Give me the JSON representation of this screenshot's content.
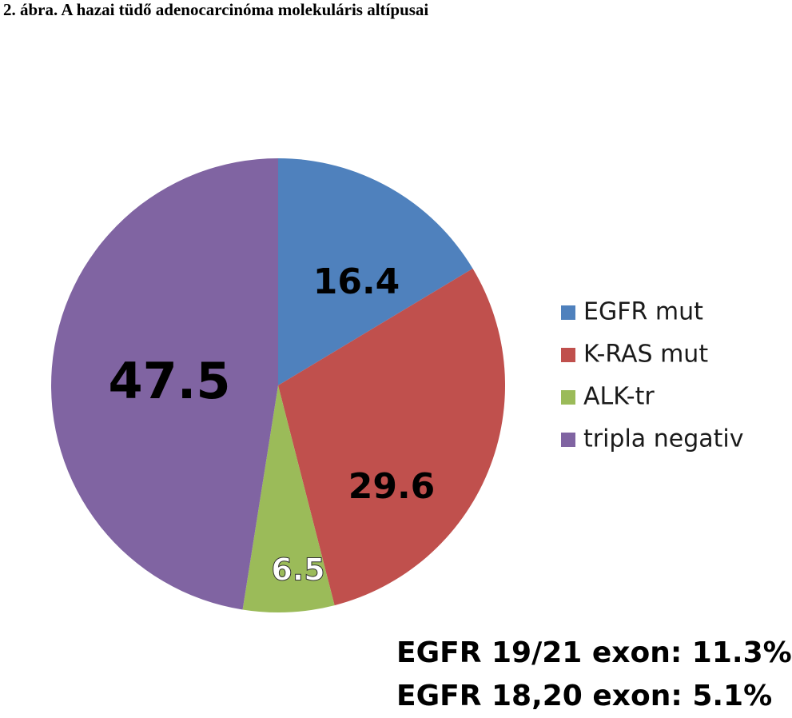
{
  "caption": "2. ábra. A hazai tüdő adenocarcinóma molekuláris altípusai",
  "chart_data": {
    "type": "pie",
    "categories": [
      "EGFR mut",
      "K-RAS mut",
      "ALK-tr",
      "tripla negativ"
    ],
    "values": [
      16.4,
      29.6,
      6.5,
      47.5
    ],
    "data_labels": [
      "16.4",
      "29.6",
      "6.5",
      "47.5"
    ],
    "colors": [
      "#4F81BD",
      "#C0504D",
      "#9BBB59",
      "#8064A2"
    ],
    "start_angle": "12 o'clock, clockwise",
    "legend_position": "right"
  },
  "notes": [
    "EGFR 19/21 exon: 11.3%",
    "EGFR 18,20 exon: 5.1%"
  ]
}
